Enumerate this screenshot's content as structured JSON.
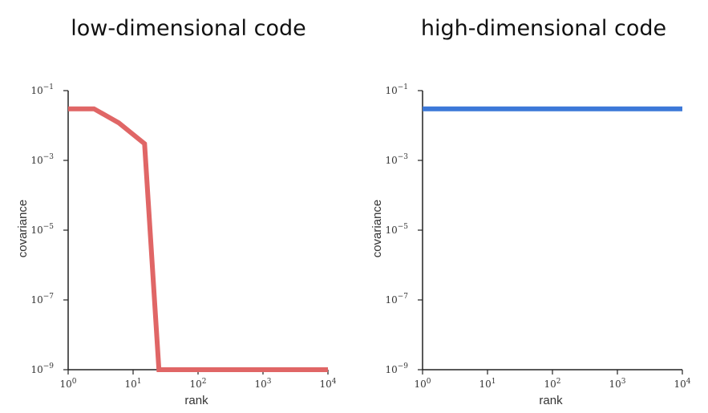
{
  "chart_data": [
    {
      "type": "line",
      "title": "low-dimensional code",
      "xlabel": "rank",
      "ylabel": "covariance",
      "xscale": "log",
      "yscale": "log",
      "xlim": [
        1,
        10000
      ],
      "ylim": [
        1e-09,
        0.1
      ],
      "x_ticks": [
        {
          "base": "10",
          "exp": "0"
        },
        {
          "base": "10",
          "exp": "1"
        },
        {
          "base": "10",
          "exp": "2"
        },
        {
          "base": "10",
          "exp": "3"
        },
        {
          "base": "10",
          "exp": "4"
        }
      ],
      "y_ticks": [
        {
          "base": "10",
          "exp": "−1"
        },
        {
          "base": "10",
          "exp": "−3"
        },
        {
          "base": "10",
          "exp": "−5"
        },
        {
          "base": "10",
          "exp": "−7"
        },
        {
          "base": "10",
          "exp": "−9"
        }
      ],
      "series": [
        {
          "name": "low-dimensional",
          "color": "#e06666",
          "x": [
            1,
            2.5,
            6,
            15,
            25,
            10000
          ],
          "y": [
            0.03,
            0.03,
            0.012,
            0.003,
            1e-09,
            1e-09
          ]
        }
      ]
    },
    {
      "type": "line",
      "title": "high-dimensional code",
      "xlabel": "rank",
      "ylabel": "covariance",
      "xscale": "log",
      "yscale": "log",
      "xlim": [
        1,
        10000
      ],
      "ylim": [
        1e-09,
        0.1
      ],
      "x_ticks": [
        {
          "base": "10",
          "exp": "0"
        },
        {
          "base": "10",
          "exp": "1"
        },
        {
          "base": "10",
          "exp": "2"
        },
        {
          "base": "10",
          "exp": "3"
        },
        {
          "base": "10",
          "exp": "4"
        }
      ],
      "y_ticks": [
        {
          "base": "10",
          "exp": "−1"
        },
        {
          "base": "10",
          "exp": "−3"
        },
        {
          "base": "10",
          "exp": "−5"
        },
        {
          "base": "10",
          "exp": "−7"
        },
        {
          "base": "10",
          "exp": "−9"
        }
      ],
      "series": [
        {
          "name": "high-dimensional",
          "color": "#3c78d8",
          "x": [
            1,
            10000
          ],
          "y": [
            0.03,
            0.03
          ]
        }
      ]
    }
  ]
}
